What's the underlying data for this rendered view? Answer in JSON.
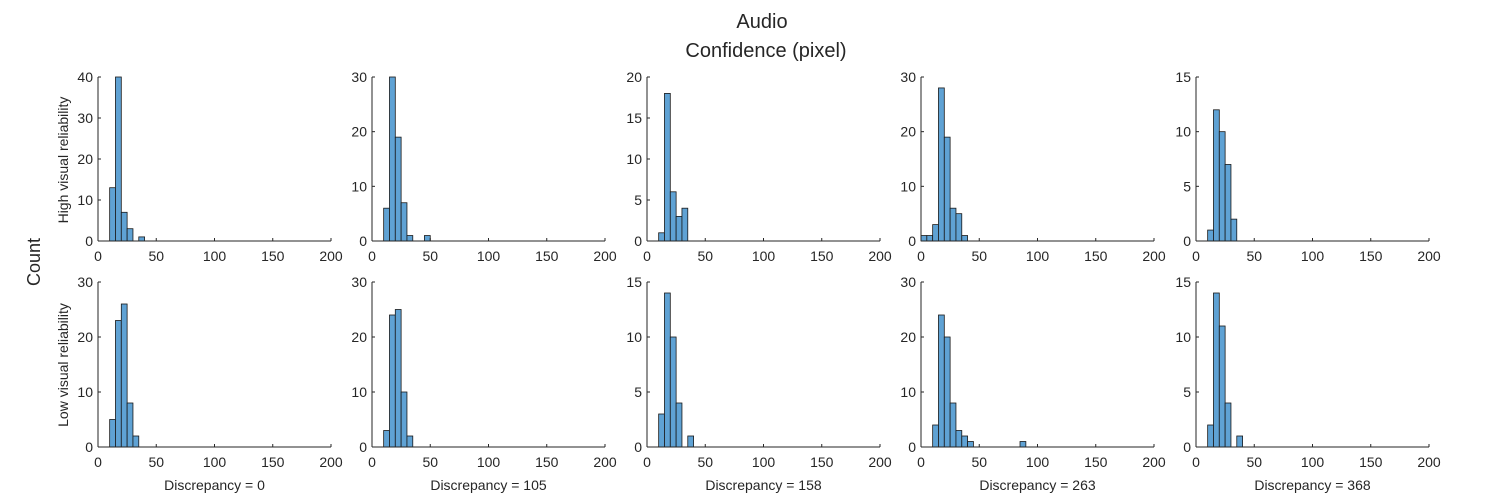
{
  "figure": {
    "title_line1": "Audio",
    "title_line2": "Confidence (pixel)",
    "ylabel_global": "Count",
    "row_labels": [
      "High visual reliability",
      "Low visual reliability"
    ],
    "column_xlabels": [
      "Discrepancy = 0",
      "Discrepancy = 105",
      "Discrepancy = 158",
      "Discrepancy = 263",
      "Discrepancy = 368"
    ],
    "bar_color": "#5fa2d4",
    "edge_color": "#1a1a1a"
  },
  "chart_data": [
    {
      "type": "bar",
      "row": "High visual reliability",
      "xlabel": "",
      "ylabel": "",
      "bin_width": 5,
      "xlim": [
        0,
        200
      ],
      "ylim": [
        0,
        40
      ],
      "yticks": [
        0,
        10,
        20,
        30,
        40
      ],
      "xticks": [
        0,
        50,
        100,
        150,
        200
      ],
      "bins_start": [
        10,
        15,
        20,
        25,
        30,
        35
      ],
      "values": [
        13,
        40,
        7,
        3,
        0,
        1
      ]
    },
    {
      "type": "bar",
      "row": "High visual reliability",
      "xlabel": "",
      "ylabel": "",
      "bin_width": 5,
      "xlim": [
        0,
        200
      ],
      "ylim": [
        0,
        30
      ],
      "yticks": [
        0,
        10,
        20,
        30
      ],
      "xticks": [
        0,
        50,
        100,
        150,
        200
      ],
      "bins_start": [
        10,
        15,
        20,
        25,
        30,
        35,
        40,
        45
      ],
      "values": [
        6,
        30,
        19,
        7,
        1,
        0,
        0,
        1
      ]
    },
    {
      "type": "bar",
      "row": "High visual reliability",
      "xlabel": "",
      "ylabel": "",
      "bin_width": 5,
      "xlim": [
        0,
        200
      ],
      "ylim": [
        0,
        20
      ],
      "yticks": [
        0,
        5,
        10,
        15,
        20
      ],
      "xticks": [
        0,
        50,
        100,
        150,
        200
      ],
      "bins_start": [
        10,
        15,
        20,
        25,
        30
      ],
      "values": [
        1,
        18,
        6,
        3,
        4
      ]
    },
    {
      "type": "bar",
      "row": "High visual reliability",
      "xlabel": "",
      "ylabel": "",
      "bin_width": 5,
      "xlim": [
        0,
        200
      ],
      "ylim": [
        0,
        30
      ],
      "yticks": [
        0,
        10,
        20,
        30
      ],
      "xticks": [
        0,
        50,
        100,
        150,
        200
      ],
      "bins_start": [
        0,
        5,
        10,
        15,
        20,
        25,
        30,
        35
      ],
      "values": [
        1,
        1,
        3,
        28,
        19,
        6,
        5,
        1
      ]
    },
    {
      "type": "bar",
      "row": "High visual reliability",
      "xlabel": "",
      "ylabel": "",
      "bin_width": 5,
      "xlim": [
        0,
        200
      ],
      "ylim": [
        0,
        15
      ],
      "yticks": [
        0,
        5,
        10,
        15
      ],
      "xticks": [
        0,
        50,
        100,
        150,
        200
      ],
      "bins_start": [
        10,
        15,
        20,
        25,
        30
      ],
      "values": [
        1,
        12,
        10,
        7,
        2
      ]
    },
    {
      "type": "bar",
      "row": "Low visual reliability",
      "xlabel": "Discrepancy = 0",
      "ylabel": "",
      "bin_width": 5,
      "xlim": [
        0,
        200
      ],
      "ylim": [
        0,
        30
      ],
      "yticks": [
        0,
        10,
        20,
        30
      ],
      "xticks": [
        0,
        50,
        100,
        150,
        200
      ],
      "bins_start": [
        10,
        15,
        20,
        25,
        30
      ],
      "values": [
        5,
        23,
        26,
        8,
        2
      ]
    },
    {
      "type": "bar",
      "row": "Low visual reliability",
      "xlabel": "Discrepancy = 105",
      "ylabel": "",
      "bin_width": 5,
      "xlim": [
        0,
        200
      ],
      "ylim": [
        0,
        30
      ],
      "yticks": [
        0,
        10,
        20,
        30
      ],
      "xticks": [
        0,
        50,
        100,
        150,
        200
      ],
      "bins_start": [
        10,
        15,
        20,
        25,
        30
      ],
      "values": [
        3,
        24,
        25,
        10,
        2
      ]
    },
    {
      "type": "bar",
      "row": "Low visual reliability",
      "xlabel": "Discrepancy = 158",
      "ylabel": "",
      "bin_width": 5,
      "xlim": [
        0,
        200
      ],
      "ylim": [
        0,
        15
      ],
      "yticks": [
        0,
        5,
        10,
        15
      ],
      "xticks": [
        0,
        50,
        100,
        150,
        200
      ],
      "bins_start": [
        10,
        15,
        20,
        25,
        30,
        35
      ],
      "values": [
        3,
        14,
        10,
        4,
        0,
        1
      ]
    },
    {
      "type": "bar",
      "row": "Low visual reliability",
      "xlabel": "Discrepancy = 263",
      "ylabel": "",
      "bin_width": 5,
      "xlim": [
        0,
        200
      ],
      "ylim": [
        0,
        30
      ],
      "yticks": [
        0,
        10,
        20,
        30
      ],
      "xticks": [
        0,
        50,
        100,
        150,
        200
      ],
      "bins_start": [
        10,
        15,
        20,
        25,
        30,
        35,
        40,
        85
      ],
      "values": [
        4,
        24,
        20,
        8,
        3,
        2,
        1,
        1
      ]
    },
    {
      "type": "bar",
      "row": "Low visual reliability",
      "xlabel": "Discrepancy = 368",
      "ylabel": "",
      "bin_width": 5,
      "xlim": [
        0,
        200
      ],
      "ylim": [
        0,
        15
      ],
      "yticks": [
        0,
        5,
        10,
        15
      ],
      "xticks": [
        0,
        50,
        100,
        150,
        200
      ],
      "bins_start": [
        10,
        15,
        20,
        25,
        30,
        35
      ],
      "values": [
        2,
        14,
        11,
        4,
        0,
        1
      ]
    }
  ]
}
